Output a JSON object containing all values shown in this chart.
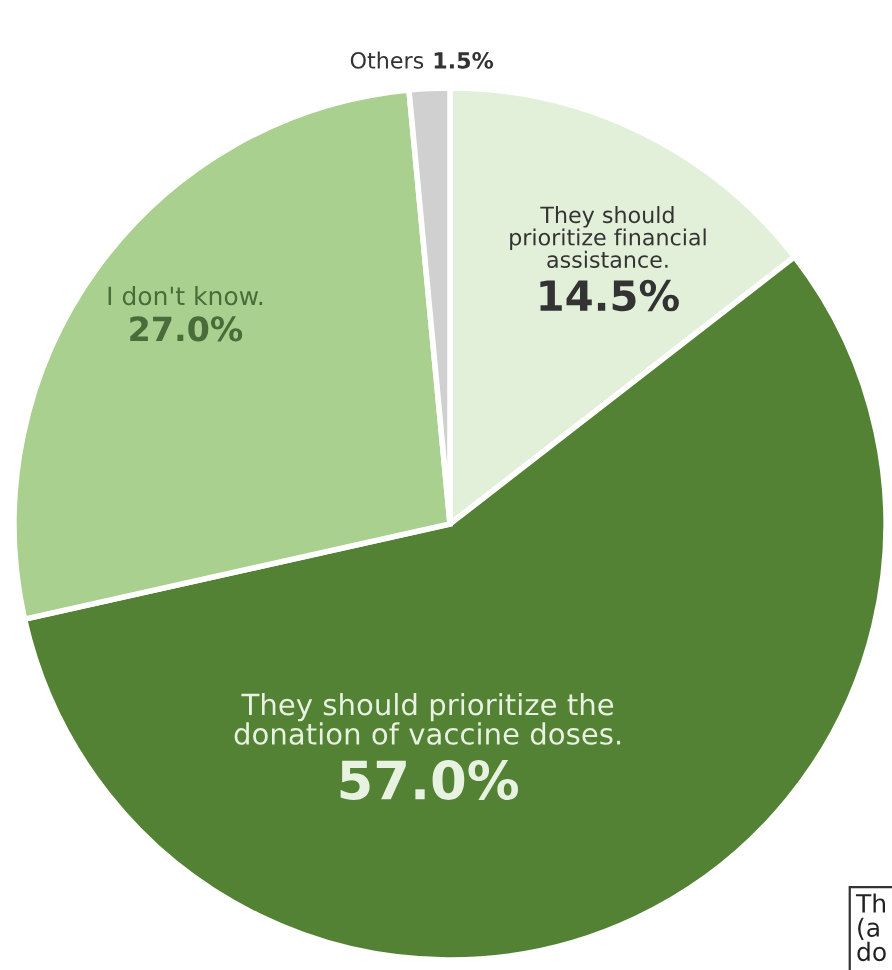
{
  "chart_data": {
    "type": "pie",
    "categories": [
      "They should\nprioritize financial\nassistance.",
      "They should prioritize the\ndonation of vaccine doses.",
      "I don't know.",
      "Others"
    ],
    "values": [
      14.5,
      57.0,
      27.0,
      1.5
    ],
    "value_labels": [
      "14.5%",
      "57.0%",
      "27.0%",
      "1.5%"
    ],
    "colors": [
      "#e2efd9",
      "#548235",
      "#a9d08e",
      "#d0d0d0"
    ],
    "annotations": [
      "Th\n(a\ndo"
    ]
  }
}
